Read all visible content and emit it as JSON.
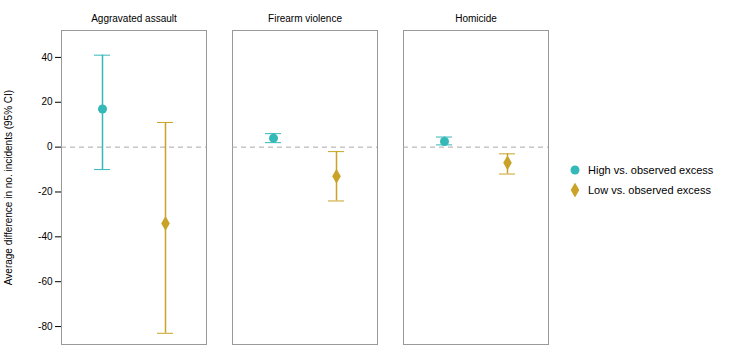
{
  "chart_data": {
    "type": "errorbar",
    "ylabel": "Average difference in no. incidents (95% CI)",
    "categories": [
      "Aggravated assault",
      "Firearm violence",
      "Homicide"
    ],
    "series": [
      {
        "name": "High vs. observed excess",
        "color": "#35b8b8",
        "marker": "circle",
        "values": [
          17,
          4,
          2.5
        ],
        "yerr_low": [
          27,
          2,
          1.5
        ],
        "yerr_high": [
          24,
          2,
          2
        ]
      },
      {
        "name": "Low vs. observed excess",
        "color": "#c9a227",
        "marker": "diamond",
        "values": [
          -34,
          -13,
          -7
        ],
        "yerr_low": [
          49,
          11,
          5
        ],
        "yerr_high": [
          45,
          11,
          4
        ]
      }
    ],
    "hline": 0,
    "ylim": [
      -88,
      52
    ],
    "yticks": [
      40,
      20,
      0,
      -20,
      -40,
      -60,
      -80
    ],
    "grid": false,
    "legend": "right"
  }
}
